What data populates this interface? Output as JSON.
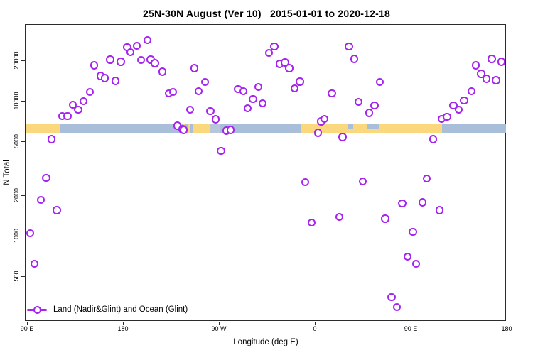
{
  "chart_data": {
    "type": "scatter",
    "title": "25N-30N August (Ver 10)   2015-01-01 to 2020-12-18",
    "xlabel": "Longitude (deg E)",
    "ylabel": "N Total",
    "x_axis": {
      "description": "longitude wrapping eastward from 90E through 180, 90W, 0 back to 180",
      "range_axis_units": [
        90,
        540
      ],
      "ticks": [
        {
          "pos": 90,
          "label": "90 E"
        },
        {
          "pos": 180,
          "label": "180"
        },
        {
          "pos": 270,
          "label": "90 W"
        },
        {
          "pos": 360,
          "label": "0"
        },
        {
          "pos": 450,
          "label": "90 E"
        },
        {
          "pos": 540,
          "label": "180"
        }
      ]
    },
    "y_axis": {
      "scale": "log10",
      "range": [
        250,
        33000
      ],
      "ticks": [
        {
          "value": 500,
          "label": "500"
        },
        {
          "value": 1000,
          "label": "1000"
        },
        {
          "value": 2000,
          "label": "2000"
        },
        {
          "value": 5000,
          "label": "5000"
        },
        {
          "value": 10000,
          "label": "10000"
        },
        {
          "value": 20000,
          "label": "20000"
        }
      ]
    },
    "legend": [
      {
        "label": "Land (Nadir&Glint) and Ocean (Glint)",
        "marker": "open-circle-on-line"
      }
    ],
    "surface_band": {
      "note": "horizontal land/ocean strip centered near N=6250",
      "value_range": [
        5800,
        6700
      ],
      "segments": [
        {
          "from": 88,
          "to": 121,
          "type": "land"
        },
        {
          "from": 121,
          "to": 236,
          "type": "ocean"
        },
        {
          "from": 236,
          "to": 238,
          "type": "land"
        },
        {
          "from": 238,
          "to": 240.5,
          "type": "ocean"
        },
        {
          "from": 240.5,
          "to": 243,
          "type": "land"
        },
        {
          "from": 243,
          "to": 245.5,
          "type": "ocean"
        },
        {
          "from": 245.5,
          "to": 261,
          "type": "land"
        },
        {
          "from": 261,
          "to": 271,
          "type": "ocean_light"
        },
        {
          "from": 271,
          "to": 347.5,
          "type": "ocean"
        },
        {
          "from": 347.5,
          "to": 479,
          "type": "land"
        },
        {
          "from": 479,
          "to": 540,
          "type": "ocean"
        }
      ],
      "notches": [
        {
          "from": 391,
          "to": 396,
          "type": "ocean"
        },
        {
          "from": 409,
          "to": 420,
          "type": "ocean"
        }
      ]
    },
    "points": [
      [
        93,
        1040
      ],
      [
        97,
        620
      ],
      [
        103,
        1840
      ],
      [
        108,
        2690
      ],
      [
        113,
        5190
      ],
      [
        118,
        1550
      ],
      [
        123,
        7720
      ],
      [
        128,
        7720
      ],
      [
        133,
        9360
      ],
      [
        138,
        8570
      ],
      [
        143,
        9940
      ],
      [
        149,
        11620
      ],
      [
        153,
        18360
      ],
      [
        159,
        15300
      ],
      [
        163,
        14760
      ],
      [
        168,
        20200
      ],
      [
        173,
        14070
      ],
      [
        178,
        19450
      ],
      [
        184,
        25000
      ],
      [
        187,
        23000
      ],
      [
        193,
        25650
      ],
      [
        197,
        20000
      ],
      [
        203,
        28200
      ],
      [
        206,
        20200
      ],
      [
        210,
        19000
      ],
      [
        217,
        16450
      ],
      [
        223,
        11350
      ],
      [
        227,
        11620
      ],
      [
        231,
        6530
      ],
      [
        236,
        6150
      ],
      [
        237,
        6080
      ],
      [
        243,
        8610
      ],
      [
        247,
        17480
      ],
      [
        251,
        11760
      ],
      [
        257,
        13740
      ],
      [
        262,
        8410
      ],
      [
        267,
        7280
      ],
      [
        272,
        4240
      ],
      [
        277,
        6010
      ],
      [
        281,
        6080
      ],
      [
        288,
        12200
      ],
      [
        293,
        11760
      ],
      [
        297,
        8810
      ],
      [
        302,
        10300
      ],
      [
        307,
        12660
      ],
      [
        311,
        9590
      ],
      [
        317,
        22740
      ],
      [
        322,
        25350
      ],
      [
        327,
        18780
      ],
      [
        332,
        19230
      ],
      [
        336,
        17480
      ],
      [
        341,
        12360
      ],
      [
        346,
        13900
      ],
      [
        351,
        2500
      ],
      [
        357,
        1250
      ],
      [
        363,
        5800
      ],
      [
        366,
        7020
      ],
      [
        369,
        7360
      ],
      [
        376,
        11350
      ],
      [
        383,
        1380
      ],
      [
        386,
        5400
      ],
      [
        392,
        25350
      ],
      [
        397,
        20400
      ],
      [
        401,
        9820
      ],
      [
        405,
        2530
      ],
      [
        411,
        8120
      ],
      [
        416,
        9250
      ],
      [
        421,
        13740
      ],
      [
        426,
        1340
      ],
      [
        432,
        350
      ],
      [
        437,
        295
      ],
      [
        442,
        1730
      ],
      [
        447,
        700
      ],
      [
        452,
        1070
      ],
      [
        455,
        620
      ],
      [
        461,
        1770
      ],
      [
        465,
        2660
      ],
      [
        471,
        5190
      ],
      [
        477,
        1550
      ],
      [
        479,
        7360
      ],
      [
        484,
        7630
      ],
      [
        490,
        9250
      ],
      [
        495,
        8570
      ],
      [
        500,
        10060
      ],
      [
        507,
        11760
      ],
      [
        511,
        18360
      ],
      [
        516,
        15870
      ],
      [
        521,
        14590
      ],
      [
        526,
        20400
      ],
      [
        530,
        14240
      ],
      [
        535,
        19450
      ]
    ]
  },
  "colors": {
    "point": "#a524f0",
    "land": "#fbd87e",
    "ocean": "#a9bfd9",
    "ocean_light": "#b7c6d8",
    "axis": "#2b2b2b",
    "text": "#000000"
  }
}
